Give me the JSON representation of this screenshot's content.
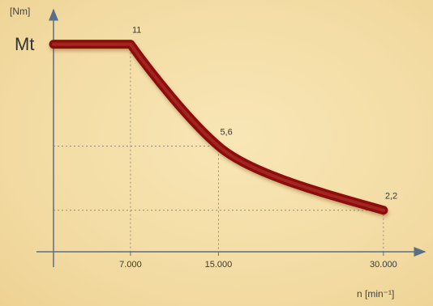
{
  "chart_data": {
    "type": "line",
    "x": [
      0,
      7000,
      15000,
      30000
    ],
    "values": [
      11,
      11,
      5.6,
      2.2
    ],
    "xlim": [
      0,
      32000
    ],
    "ylim": [
      0,
      13
    ],
    "x_tick_labels": [
      {
        "x": 7000,
        "label": "7.000"
      },
      {
        "x": 15000,
        "label": "15.000"
      },
      {
        "x": 30000,
        "label": "30.000"
      }
    ],
    "point_labels": [
      {
        "x": 7000,
        "y": 11,
        "label": "11"
      },
      {
        "x": 15000,
        "y": 5.6,
        "label": "5,6"
      },
      {
        "x": 30000,
        "y": 2.2,
        "label": "2,2"
      }
    ],
    "ylabel": "Mt",
    "yunit": "[Nm]",
    "xlabel": "n [min⁻¹]",
    "grid": false,
    "legend": "none",
    "colors": {
      "curve": "#8b1010",
      "axis": "#5a6f86",
      "guide": "#9a8a70"
    }
  }
}
